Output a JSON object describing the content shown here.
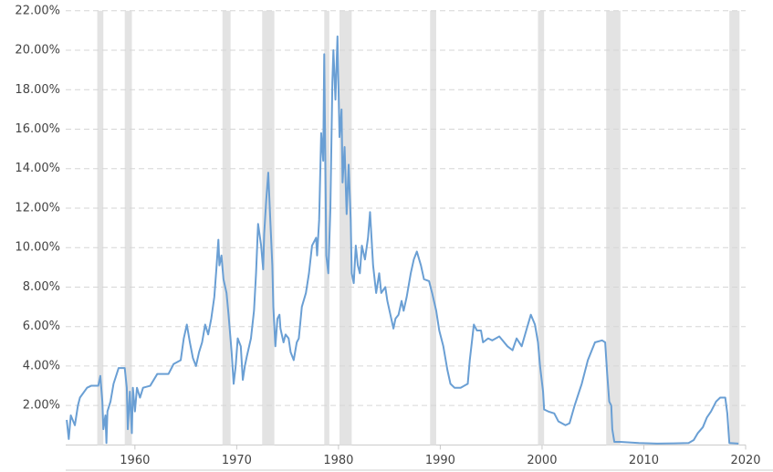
{
  "chart_data": {
    "type": "line",
    "x": [
      1953.3,
      1953.5,
      1953.7,
      1954.1,
      1954.4,
      1954.6,
      1955.3,
      1955.7,
      1956.4,
      1956.6,
      1956.8,
      1956.9,
      1957.1,
      1957.2,
      1957.3,
      1957.6,
      1957.9,
      1958.4,
      1959.0,
      1959.2,
      1959.3,
      1959.5,
      1959.7,
      1959.8,
      1960.0,
      1960.2,
      1960.5,
      1960.8,
      1961.5,
      1962.2,
      1963.3,
      1963.8,
      1964.5,
      1964.8,
      1965.1,
      1965.4,
      1965.7,
      1966.0,
      1966.3,
      1966.6,
      1966.9,
      1967.2,
      1967.5,
      1967.8,
      1968.0,
      1968.2,
      1968.3,
      1968.5,
      1968.7,
      1969.0,
      1969.2,
      1969.5,
      1969.7,
      1969.9,
      1970.1,
      1970.4,
      1970.6,
      1970.8,
      1971.0,
      1971.4,
      1971.7,
      1971.9,
      1972.1,
      1972.4,
      1972.6,
      1972.7,
      1972.9,
      1973.1,
      1973.3,
      1973.5,
      1973.6,
      1973.8,
      1974.0,
      1974.2,
      1974.3,
      1974.6,
      1974.8,
      1975.1,
      1975.3,
      1975.6,
      1975.9,
      1976.1,
      1976.4,
      1976.8,
      1977.1,
      1977.4,
      1977.8,
      1977.9,
      1978.1,
      1978.3,
      1978.5,
      1978.6,
      1978.8,
      1979.0,
      1979.2,
      1979.4,
      1979.5,
      1979.7,
      1979.9,
      1980.1,
      1980.3,
      1980.4,
      1980.6,
      1980.8,
      1981.0,
      1981.2,
      1981.3,
      1981.5,
      1981.7,
      1981.9,
      1982.1,
      1982.3,
      1982.6,
      1982.9,
      1983.1,
      1983.4,
      1983.7,
      1984.0,
      1984.2,
      1984.6,
      1984.8,
      1985.1,
      1985.4,
      1985.6,
      1985.9,
      1986.2,
      1986.4,
      1986.7,
      1987.1,
      1987.4,
      1987.7,
      1988.1,
      1988.4,
      1988.9,
      1989.2,
      1989.6,
      1989.9,
      1990.3,
      1990.7,
      1991.0,
      1991.4,
      1992.0,
      1992.7,
      1992.9,
      1993.3,
      1993.6,
      1994.0,
      1994.2,
      1994.7,
      1995.1,
      1995.8,
      1996.6,
      1997.1,
      1997.5,
      1998.0,
      1998.5,
      1998.9,
      1999.3,
      1999.6,
      1999.8,
      2000.1,
      2000.2,
      2000.6,
      2001.2,
      2001.6,
      2002.3,
      2002.7,
      2003.2,
      2003.9,
      2004.5,
      2005.2,
      2005.9,
      2006.2,
      2006.4,
      2006.6,
      2006.8,
      2006.9,
      2007.1,
      2007.7,
      2009.5,
      2011.3,
      2013.0,
      2014.4,
      2014.9,
      2015.3,
      2015.8,
      2016.2,
      2016.6,
      2017.1,
      2017.5,
      2018.0,
      2018.2,
      2018.4,
      2019.3
    ],
    "series": [
      {
        "color": "#6a9fd4",
        "values": [
          1.27,
          0.3,
          1.5,
          1.0,
          2.0,
          2.4,
          2.9,
          3.0,
          3.0,
          3.5,
          2.2,
          0.8,
          1.5,
          0.1,
          1.7,
          2.2,
          3.1,
          3.9,
          3.9,
          2.9,
          0.8,
          2.7,
          0.6,
          2.9,
          1.7,
          2.9,
          2.4,
          2.9,
          3.0,
          3.6,
          3.6,
          4.1,
          4.3,
          5.4,
          6.1,
          5.2,
          4.4,
          4.0,
          4.7,
          5.2,
          6.1,
          5.6,
          6.4,
          7.5,
          8.9,
          10.4,
          9.1,
          9.6,
          8.4,
          7.7,
          6.6,
          4.7,
          3.1,
          4.0,
          5.4,
          5.0,
          3.3,
          4.0,
          4.5,
          5.4,
          6.8,
          8.7,
          11.2,
          10.1,
          8.9,
          10.7,
          12.4,
          13.8,
          11.4,
          9.1,
          7.0,
          5.0,
          6.4,
          6.6,
          5.9,
          5.2,
          5.6,
          5.4,
          4.7,
          4.3,
          5.2,
          5.4,
          7.0,
          7.7,
          8.7,
          10.1,
          10.5,
          9.6,
          11.4,
          15.8,
          14.4,
          19.8,
          9.6,
          8.7,
          11.9,
          18.4,
          20.0,
          17.5,
          20.7,
          15.6,
          17.0,
          13.3,
          15.1,
          11.7,
          14.2,
          11.4,
          8.7,
          8.2,
          10.1,
          9.1,
          8.7,
          10.1,
          9.4,
          10.5,
          11.8,
          9.1,
          7.7,
          8.7,
          7.7,
          8.0,
          7.3,
          6.6,
          5.9,
          6.4,
          6.6,
          7.3,
          6.8,
          7.5,
          8.7,
          9.4,
          9.8,
          9.1,
          8.4,
          8.3,
          7.7,
          6.8,
          5.8,
          5.0,
          3.8,
          3.1,
          2.9,
          2.9,
          3.1,
          4.3,
          6.1,
          5.8,
          5.8,
          5.2,
          5.4,
          5.3,
          5.5,
          5.0,
          4.8,
          5.4,
          5.0,
          5.9,
          6.6,
          6.1,
          5.2,
          4.0,
          2.7,
          1.8,
          1.7,
          1.6,
          1.2,
          1.0,
          1.1,
          2.0,
          3.1,
          4.3,
          5.2,
          5.3,
          5.2,
          3.6,
          2.2,
          2.0,
          0.8,
          0.16,
          0.16,
          0.1,
          0.07,
          0.08,
          0.1,
          0.25,
          0.6,
          0.9,
          1.4,
          1.7,
          2.2,
          2.4,
          2.4,
          1.6,
          0.1,
          0.07
        ]
      }
    ],
    "recessions": [
      [
        1956.3,
        1956.9
      ],
      [
        1959.0,
        1959.7
      ],
      [
        1968.6,
        1969.4
      ],
      [
        1972.5,
        1973.7
      ],
      [
        1978.6,
        1979.1
      ],
      [
        1980.1,
        1981.3
      ],
      [
        1989.0,
        1989.6
      ],
      [
        1999.6,
        2000.2
      ],
      [
        2006.3,
        2007.7
      ],
      [
        2018.4,
        2019.4
      ]
    ],
    "recession_color": "#e3e3e3",
    "xlim": [
      1953.2,
      2020
    ],
    "xticks": [
      1960,
      1970,
      1980,
      1990,
      2000,
      2010,
      2020
    ],
    "ylim": [
      0,
      22
    ],
    "yticks": [
      {
        "value": 2,
        "label": "2.00%"
      },
      {
        "value": 4,
        "label": "4.00%"
      },
      {
        "value": 6,
        "label": "6.00%"
      },
      {
        "value": 8,
        "label": "8.00%"
      },
      {
        "value": 10,
        "label": "10.00%"
      },
      {
        "value": 12,
        "label": "12.00%"
      },
      {
        "value": 14,
        "label": "14.00%"
      },
      {
        "value": 16,
        "label": "16.00%"
      },
      {
        "value": 18,
        "label": "18.00%"
      },
      {
        "value": 20,
        "label": "20.00%"
      },
      {
        "value": 22,
        "label": "22.00%"
      }
    ],
    "grid": true
  }
}
